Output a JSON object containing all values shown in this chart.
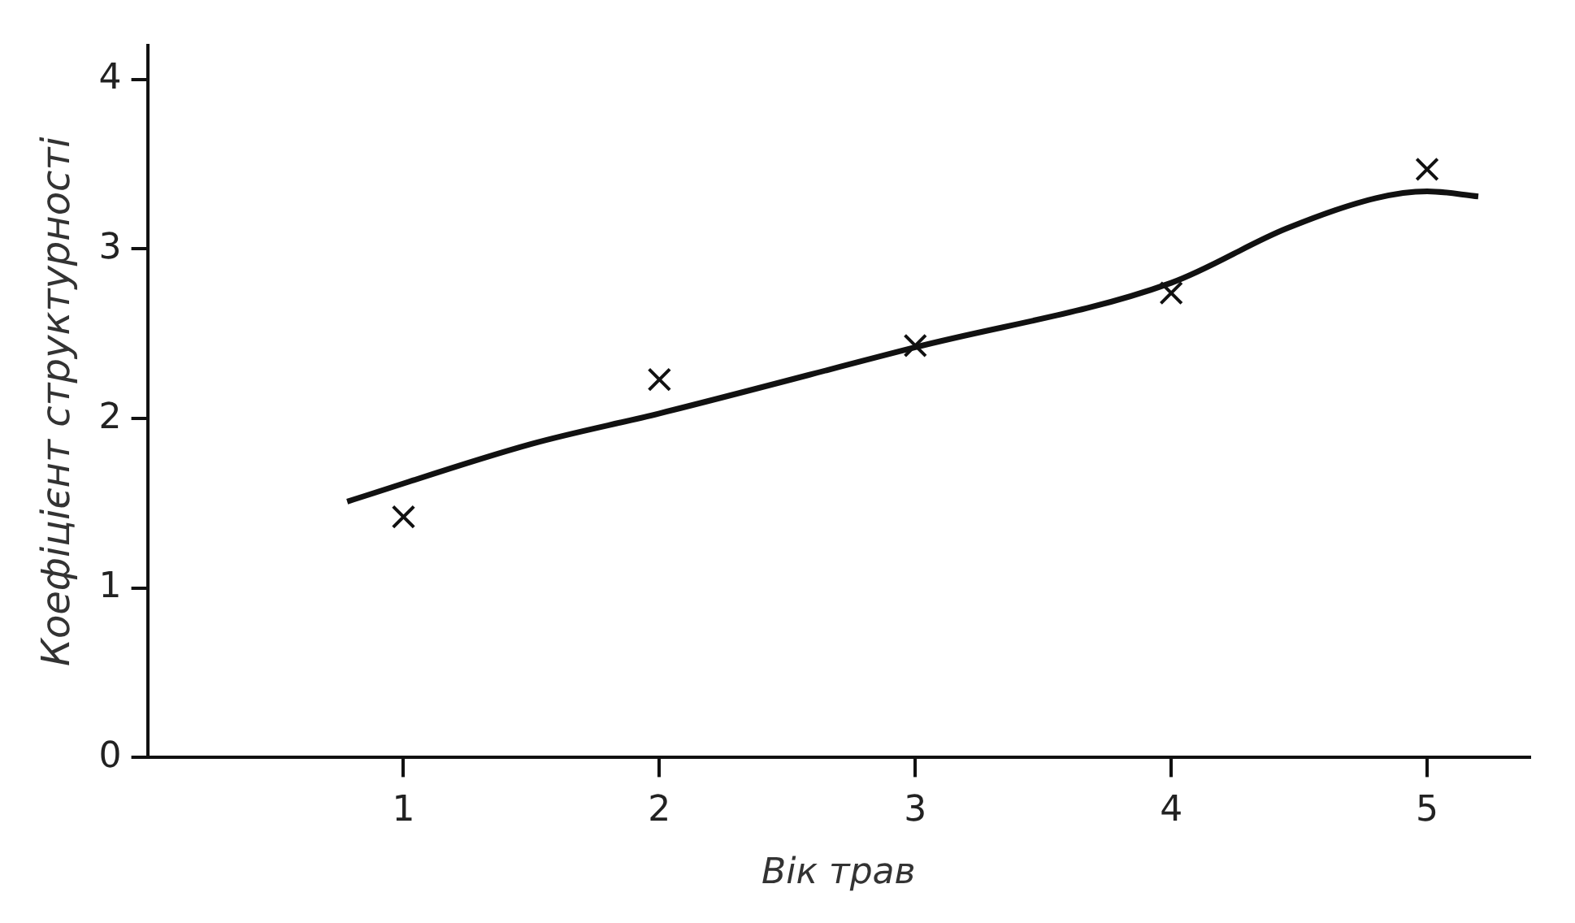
{
  "chart_data": {
    "type": "scatter",
    "xlabel": "Вік трав",
    "ylabel": "Коефіцієнт структурності",
    "xlim": [
      0,
      5.4
    ],
    "ylim": [
      0,
      4.2
    ],
    "xticks": [
      1,
      2,
      3,
      4,
      5
    ],
    "yticks": [
      0,
      1,
      2,
      3,
      4
    ],
    "grid": false,
    "legend": false,
    "series": [
      {
        "type": "scatter",
        "color": "#111111",
        "marker": "cross",
        "x": [
          1,
          2,
          3,
          4,
          5
        ],
        "values": [
          1.42,
          2.23,
          2.43,
          2.74,
          3.47
        ]
      },
      {
        "type": "line",
        "color": "#111111",
        "marker": "none",
        "line_style": "solid",
        "x": [
          0.78,
          1.5,
          2,
          3,
          4,
          4.45,
          4.8,
          5,
          5.2
        ],
        "values": [
          1.51,
          1.85,
          2.03,
          2.42,
          2.8,
          3.12,
          3.3,
          3.34,
          3.31
        ]
      }
    ]
  }
}
